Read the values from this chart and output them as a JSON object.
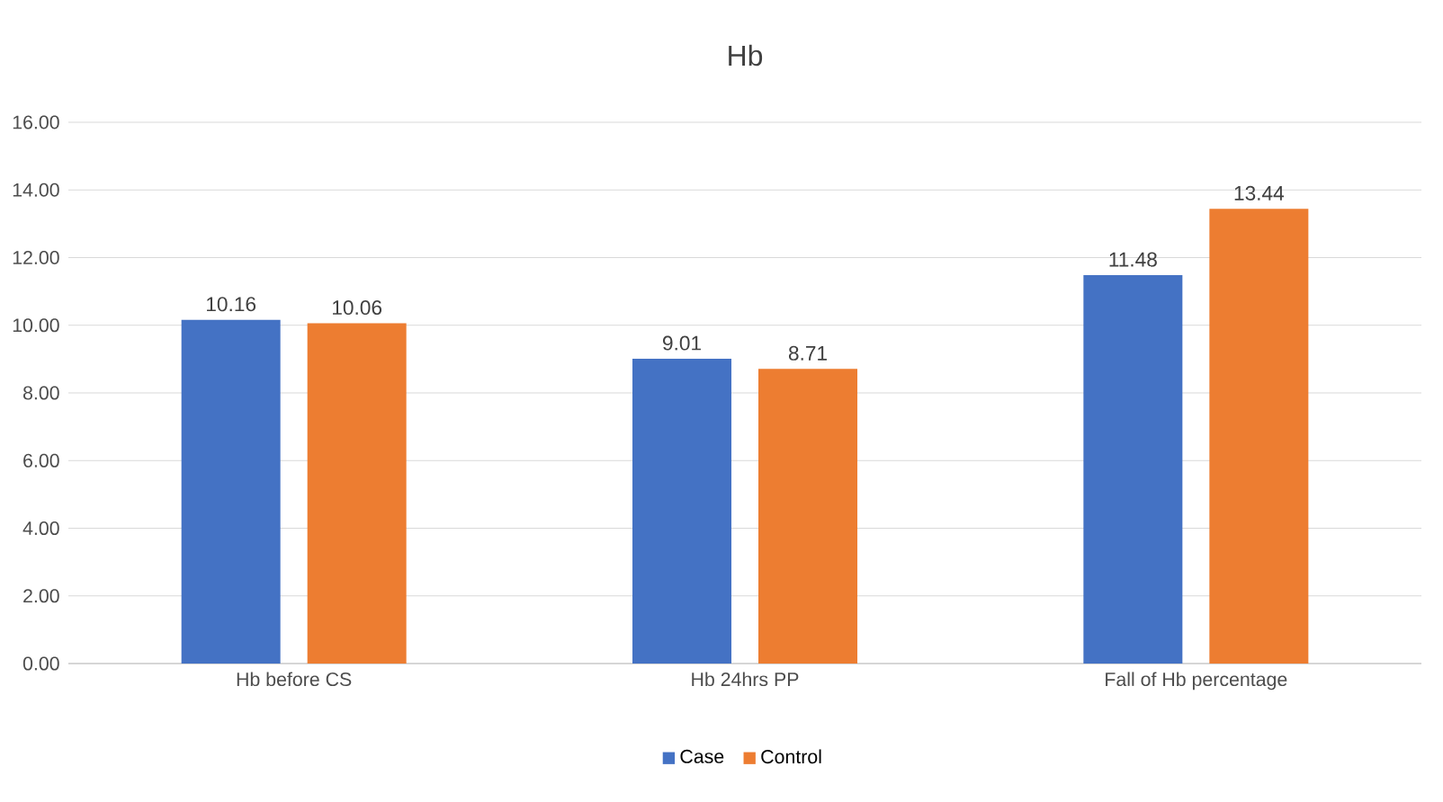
{
  "chart_data": {
    "type": "bar",
    "title": "Hb",
    "categories": [
      "Hb before CS",
      "Hb 24hrs PP",
      "Fall of Hb percentage"
    ],
    "series": [
      {
        "name": "Case",
        "color": "#4472c4",
        "values": [
          10.16,
          9.01,
          11.48
        ],
        "value_labels": [
          "10.16",
          "9.01",
          "11.48"
        ]
      },
      {
        "name": "Control",
        "color": "#ed7d31",
        "values": [
          10.06,
          8.71,
          13.44
        ],
        "value_labels": [
          "10.06",
          "8.71",
          "13.44"
        ]
      }
    ],
    "ylim": [
      0,
      16
    ],
    "yticks": [
      {
        "value": 0,
        "label": "0.00"
      },
      {
        "value": 2,
        "label": "2.00"
      },
      {
        "value": 4,
        "label": "4.00"
      },
      {
        "value": 6,
        "label": "6.00"
      },
      {
        "value": 8,
        "label": "8.00"
      },
      {
        "value": 10,
        "label": "10.00"
      },
      {
        "value": 12,
        "label": "12.00"
      },
      {
        "value": 14,
        "label": "14.00"
      },
      {
        "value": 16,
        "label": "16.00"
      }
    ],
    "grid": "y",
    "legend": "bottom"
  }
}
